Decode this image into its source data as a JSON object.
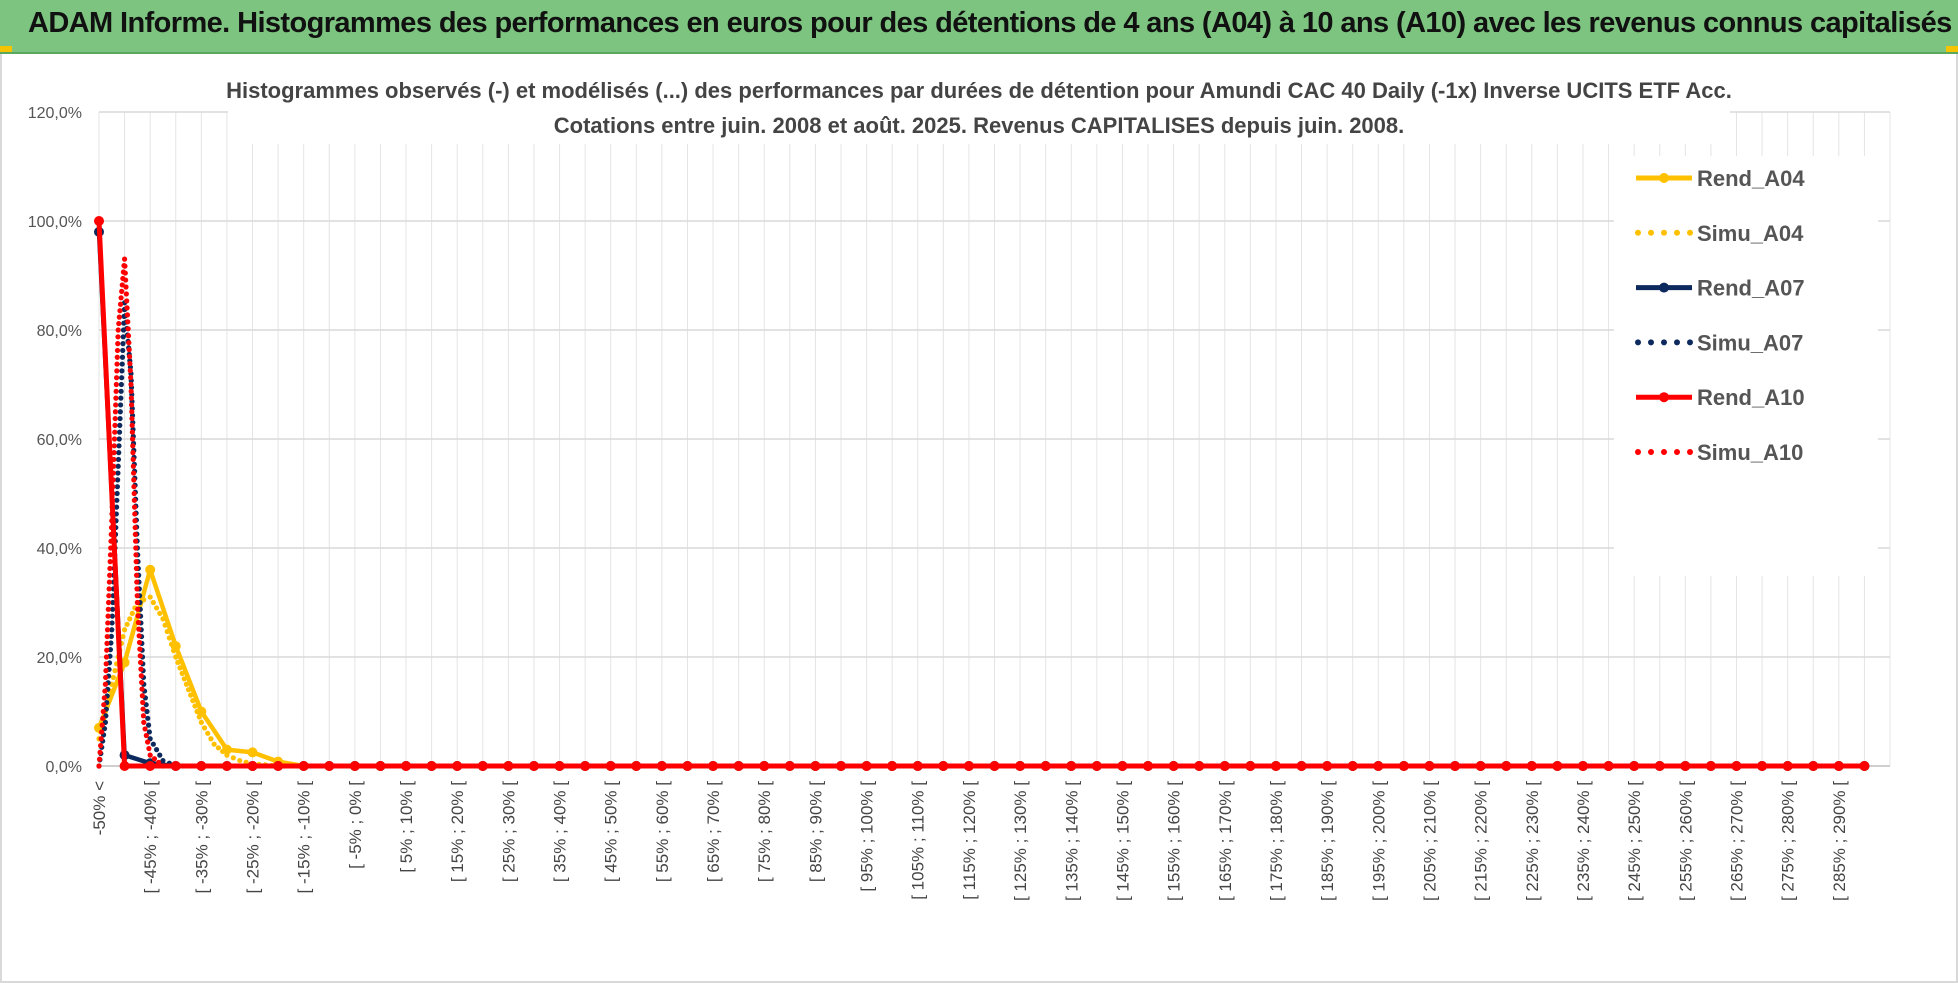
{
  "banner": {
    "title": "ADAM Informe. Histogrammes des performances en euros pour des détentions de 4 ans (A04) à 10 ans (A10) avec les revenus connus capitalisés",
    "color": "#7cc47f"
  },
  "chart_data": {
    "type": "line",
    "title": "Histogrammes observés (-) et modélisés (...) des performances par durées de détention pour Amundi CAC 40 Daily (-1x) Inverse UCITS ETF Acc.",
    "subtitle": "Cotations entre juin. 2008 et août. 2025. Revenus CAPITALISES depuis juin. 2008.",
    "ylim": [
      0,
      120
    ],
    "yticks": [
      "0,0%",
      "20,0%",
      "40,0%",
      "60,0%",
      "80,0%",
      "100,0%",
      "120,0%"
    ],
    "grid": true,
    "legend_position": "right",
    "categories": [
      "-50% <",
      "[ -45% ; -40% [",
      "[ -35% ; -30% [",
      "[ -25% ; -20% [",
      "[ -15% ; -10% [",
      "[ -5% ; 0% [",
      "[ 5% ; 10% [",
      "[ 15% ; 20% [",
      "[ 25% ; 30% [",
      "[ 35% ; 40% [",
      "[ 45% ; 50% [",
      "[ 55% ; 60% [",
      "[ 65% ; 70% [",
      "[ 75% ; 80% [",
      "[ 85% ; 90% [",
      "[ 95% ; 100% [",
      "[ 105% ; 110% [",
      "[ 115% ; 120% [",
      "[ 125% ; 130% [",
      "[ 135% ; 140% [",
      "[ 145% ; 150% [",
      "[ 155% ; 160% [",
      "[ 165% ; 170% [",
      "[ 175% ; 180% [",
      "[ 185% ; 190% [",
      "[ 195% ; 200% [",
      "[ 205% ; 210% [",
      "[ 215% ; 220% [",
      "[ 225% ; 230% [",
      "[ 235% ; 240% [",
      "[ 245% ; 250% [",
      "[ 255% ; 260% [",
      "[ 265% ; 270% [",
      "[ 275% ; 280% [",
      "[ 285% ; 290% ["
    ],
    "series": [
      {
        "name": "Rend_A04",
        "style": "solid",
        "color": "#ffc000",
        "points": [
          [
            0,
            7
          ],
          [
            1,
            19
          ],
          [
            2,
            36
          ],
          [
            3,
            22
          ],
          [
            4,
            10
          ],
          [
            5,
            3
          ],
          [
            6,
            2.5
          ],
          [
            7,
            0.8
          ],
          [
            8,
            0
          ],
          [
            9,
            0
          ],
          [
            10,
            0
          ],
          [
            11,
            0
          ],
          [
            12,
            0
          ],
          [
            13,
            0
          ],
          [
            14,
            0
          ],
          [
            15,
            0
          ],
          [
            16,
            0
          ],
          [
            17,
            0
          ],
          [
            18,
            0
          ],
          [
            19,
            0
          ],
          [
            20,
            0
          ],
          [
            21,
            0
          ],
          [
            22,
            0
          ],
          [
            23,
            0
          ],
          [
            24,
            0
          ],
          [
            25,
            0
          ],
          [
            26,
            0
          ],
          [
            27,
            0
          ],
          [
            28,
            0
          ],
          [
            29,
            0
          ],
          [
            30,
            0
          ],
          [
            31,
            0
          ],
          [
            32,
            0
          ],
          [
            33,
            0
          ],
          [
            34,
            0
          ],
          [
            35,
            0
          ],
          [
            36,
            0
          ],
          [
            37,
            0
          ],
          [
            38,
            0
          ],
          [
            39,
            0
          ],
          [
            40,
            0
          ],
          [
            41,
            0
          ],
          [
            42,
            0
          ],
          [
            43,
            0
          ],
          [
            44,
            0
          ],
          [
            45,
            0
          ],
          [
            46,
            0
          ],
          [
            47,
            0
          ],
          [
            48,
            0
          ],
          [
            49,
            0
          ],
          [
            50,
            0
          ],
          [
            51,
            0
          ],
          [
            52,
            0
          ],
          [
            53,
            0
          ],
          [
            54,
            0
          ],
          [
            55,
            0
          ],
          [
            56,
            0
          ],
          [
            57,
            0
          ],
          [
            58,
            0
          ],
          [
            59,
            0
          ],
          [
            60,
            0
          ],
          [
            61,
            0
          ],
          [
            62,
            0
          ],
          [
            63,
            0
          ],
          [
            64,
            0
          ],
          [
            65,
            0
          ],
          [
            66,
            0
          ],
          [
            67,
            0
          ],
          [
            68,
            0
          ],
          [
            69,
            0
          ]
        ]
      },
      {
        "name": "Simu_A04",
        "style": "dotted",
        "color": "#ffc000",
        "points": [
          [
            0,
            5
          ],
          [
            0.5,
            15
          ],
          [
            1,
            25
          ],
          [
            1.5,
            30
          ],
          [
            2,
            31
          ],
          [
            2.5,
            27
          ],
          [
            3,
            20
          ],
          [
            3.5,
            14
          ],
          [
            4,
            8
          ],
          [
            4.5,
            4
          ],
          [
            5,
            2
          ],
          [
            5.5,
            1
          ],
          [
            6,
            0.4
          ],
          [
            7,
            0
          ],
          [
            8,
            0
          ]
        ]
      },
      {
        "name": "Rend_A07",
        "style": "solid",
        "color": "#0d2a5e",
        "points": [
          [
            0,
            98
          ],
          [
            1,
            2
          ],
          [
            2,
            0.5
          ],
          [
            3,
            0
          ],
          [
            4,
            0
          ],
          [
            5,
            0
          ],
          [
            6,
            0
          ],
          [
            7,
            0
          ],
          [
            8,
            0
          ],
          [
            9,
            0
          ],
          [
            10,
            0
          ],
          [
            11,
            0
          ],
          [
            12,
            0
          ],
          [
            13,
            0
          ],
          [
            14,
            0
          ],
          [
            15,
            0
          ],
          [
            16,
            0
          ],
          [
            17,
            0
          ],
          [
            18,
            0
          ],
          [
            19,
            0
          ],
          [
            20,
            0
          ],
          [
            21,
            0
          ],
          [
            22,
            0
          ],
          [
            23,
            0
          ],
          [
            24,
            0
          ],
          [
            25,
            0
          ],
          [
            26,
            0
          ],
          [
            27,
            0
          ],
          [
            28,
            0
          ],
          [
            29,
            0
          ],
          [
            30,
            0
          ],
          [
            31,
            0
          ],
          [
            32,
            0
          ],
          [
            33,
            0
          ],
          [
            34,
            0
          ],
          [
            35,
            0
          ],
          [
            36,
            0
          ],
          [
            37,
            0
          ],
          [
            38,
            0
          ],
          [
            39,
            0
          ],
          [
            40,
            0
          ],
          [
            41,
            0
          ],
          [
            42,
            0
          ],
          [
            43,
            0
          ],
          [
            44,
            0
          ],
          [
            45,
            0
          ],
          [
            46,
            0
          ],
          [
            47,
            0
          ],
          [
            48,
            0
          ],
          [
            49,
            0
          ],
          [
            50,
            0
          ],
          [
            51,
            0
          ],
          [
            52,
            0
          ],
          [
            53,
            0
          ],
          [
            54,
            0
          ],
          [
            55,
            0
          ],
          [
            56,
            0
          ],
          [
            57,
            0
          ],
          [
            58,
            0
          ],
          [
            59,
            0
          ],
          [
            60,
            0
          ],
          [
            61,
            0
          ],
          [
            62,
            0
          ],
          [
            63,
            0
          ],
          [
            64,
            0
          ],
          [
            65,
            0
          ],
          [
            66,
            0
          ],
          [
            67,
            0
          ],
          [
            68,
            0
          ],
          [
            69,
            0
          ]
        ]
      },
      {
        "name": "Simu_A07",
        "style": "dotted",
        "color": "#0d2a5e",
        "points": [
          [
            0,
            0
          ],
          [
            0.25,
            8
          ],
          [
            0.5,
            25
          ],
          [
            0.75,
            55
          ],
          [
            1,
            85
          ],
          [
            1.25,
            72
          ],
          [
            1.5,
            40
          ],
          [
            1.75,
            15
          ],
          [
            2,
            5
          ],
          [
            2.5,
            1
          ],
          [
            3,
            0
          ]
        ]
      },
      {
        "name": "Rend_A10",
        "style": "solid",
        "color": "#ff0000",
        "points": [
          [
            0,
            100
          ],
          [
            1,
            0
          ],
          [
            2,
            0
          ],
          [
            3,
            0
          ],
          [
            4,
            0
          ],
          [
            5,
            0
          ],
          [
            6,
            0
          ],
          [
            7,
            0
          ],
          [
            8,
            0
          ],
          [
            9,
            0
          ],
          [
            10,
            0
          ],
          [
            11,
            0
          ],
          [
            12,
            0
          ],
          [
            13,
            0
          ],
          [
            14,
            0
          ],
          [
            15,
            0
          ],
          [
            16,
            0
          ],
          [
            17,
            0
          ],
          [
            18,
            0
          ],
          [
            19,
            0
          ],
          [
            20,
            0
          ],
          [
            21,
            0
          ],
          [
            22,
            0
          ],
          [
            23,
            0
          ],
          [
            24,
            0
          ],
          [
            25,
            0
          ],
          [
            26,
            0
          ],
          [
            27,
            0
          ],
          [
            28,
            0
          ],
          [
            29,
            0
          ],
          [
            30,
            0
          ],
          [
            31,
            0
          ],
          [
            32,
            0
          ],
          [
            33,
            0
          ],
          [
            34,
            0
          ],
          [
            35,
            0
          ],
          [
            36,
            0
          ],
          [
            37,
            0
          ],
          [
            38,
            0
          ],
          [
            39,
            0
          ],
          [
            40,
            0
          ],
          [
            41,
            0
          ],
          [
            42,
            0
          ],
          [
            43,
            0
          ],
          [
            44,
            0
          ],
          [
            45,
            0
          ],
          [
            46,
            0
          ],
          [
            47,
            0
          ],
          [
            48,
            0
          ],
          [
            49,
            0
          ],
          [
            50,
            0
          ],
          [
            51,
            0
          ],
          [
            52,
            0
          ],
          [
            53,
            0
          ],
          [
            54,
            0
          ],
          [
            55,
            0
          ],
          [
            56,
            0
          ],
          [
            57,
            0
          ],
          [
            58,
            0
          ],
          [
            59,
            0
          ],
          [
            60,
            0
          ],
          [
            61,
            0
          ],
          [
            62,
            0
          ],
          [
            63,
            0
          ],
          [
            64,
            0
          ],
          [
            65,
            0
          ],
          [
            66,
            0
          ],
          [
            67,
            0
          ],
          [
            68,
            0
          ],
          [
            69,
            0
          ]
        ]
      },
      {
        "name": "Simu_A10",
        "style": "dotted",
        "color": "#ff0000",
        "points": [
          [
            0,
            0
          ],
          [
            0.25,
            15
          ],
          [
            0.5,
            45
          ],
          [
            0.75,
            80
          ],
          [
            1,
            93
          ],
          [
            1.25,
            70
          ],
          [
            1.5,
            30
          ],
          [
            1.75,
            8
          ],
          [
            2,
            2
          ],
          [
            2.5,
            0
          ]
        ]
      }
    ]
  }
}
